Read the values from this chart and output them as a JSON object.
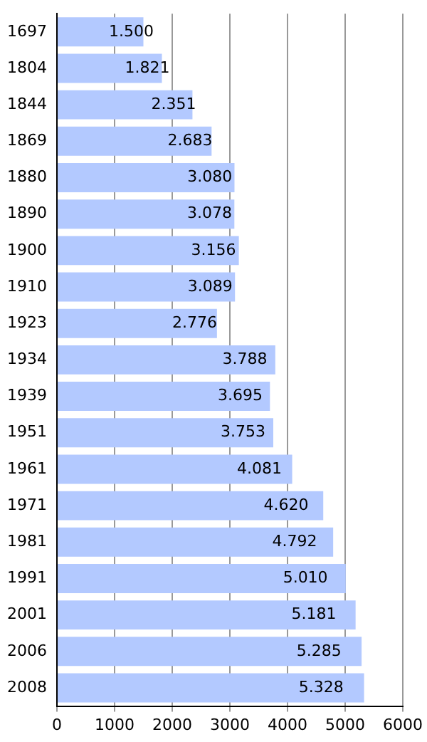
{
  "chart_data": {
    "type": "bar",
    "orientation": "horizontal",
    "categories": [
      "1697",
      "1804",
      "1844",
      "1869",
      "1880",
      "1890",
      "1900",
      "1910",
      "1923",
      "1934",
      "1939",
      "1951",
      "1961",
      "1971",
      "1981",
      "1991",
      "2001",
      "2006",
      "2008"
    ],
    "values": [
      1500,
      1821,
      2351,
      2683,
      3080,
      3078,
      3156,
      3089,
      2776,
      3788,
      3695,
      3753,
      4081,
      4620,
      4792,
      5010,
      5181,
      5285,
      5328
    ],
    "value_labels": [
      "1.500",
      "1.821",
      "2.351",
      "2.683",
      "3.080",
      "3.078",
      "3.156",
      "3.089",
      "2.776",
      "3.788",
      "3.695",
      "3.753",
      "4.081",
      "4.620",
      "4.792",
      "5.010",
      "5.181",
      "5.285",
      "5.328"
    ],
    "color": "#b3c9ff",
    "xlim": [
      0,
      6000
    ],
    "xticks": [
      0,
      1000,
      2000,
      3000,
      4000,
      5000,
      6000
    ],
    "grid": "x",
    "legend": false
  }
}
